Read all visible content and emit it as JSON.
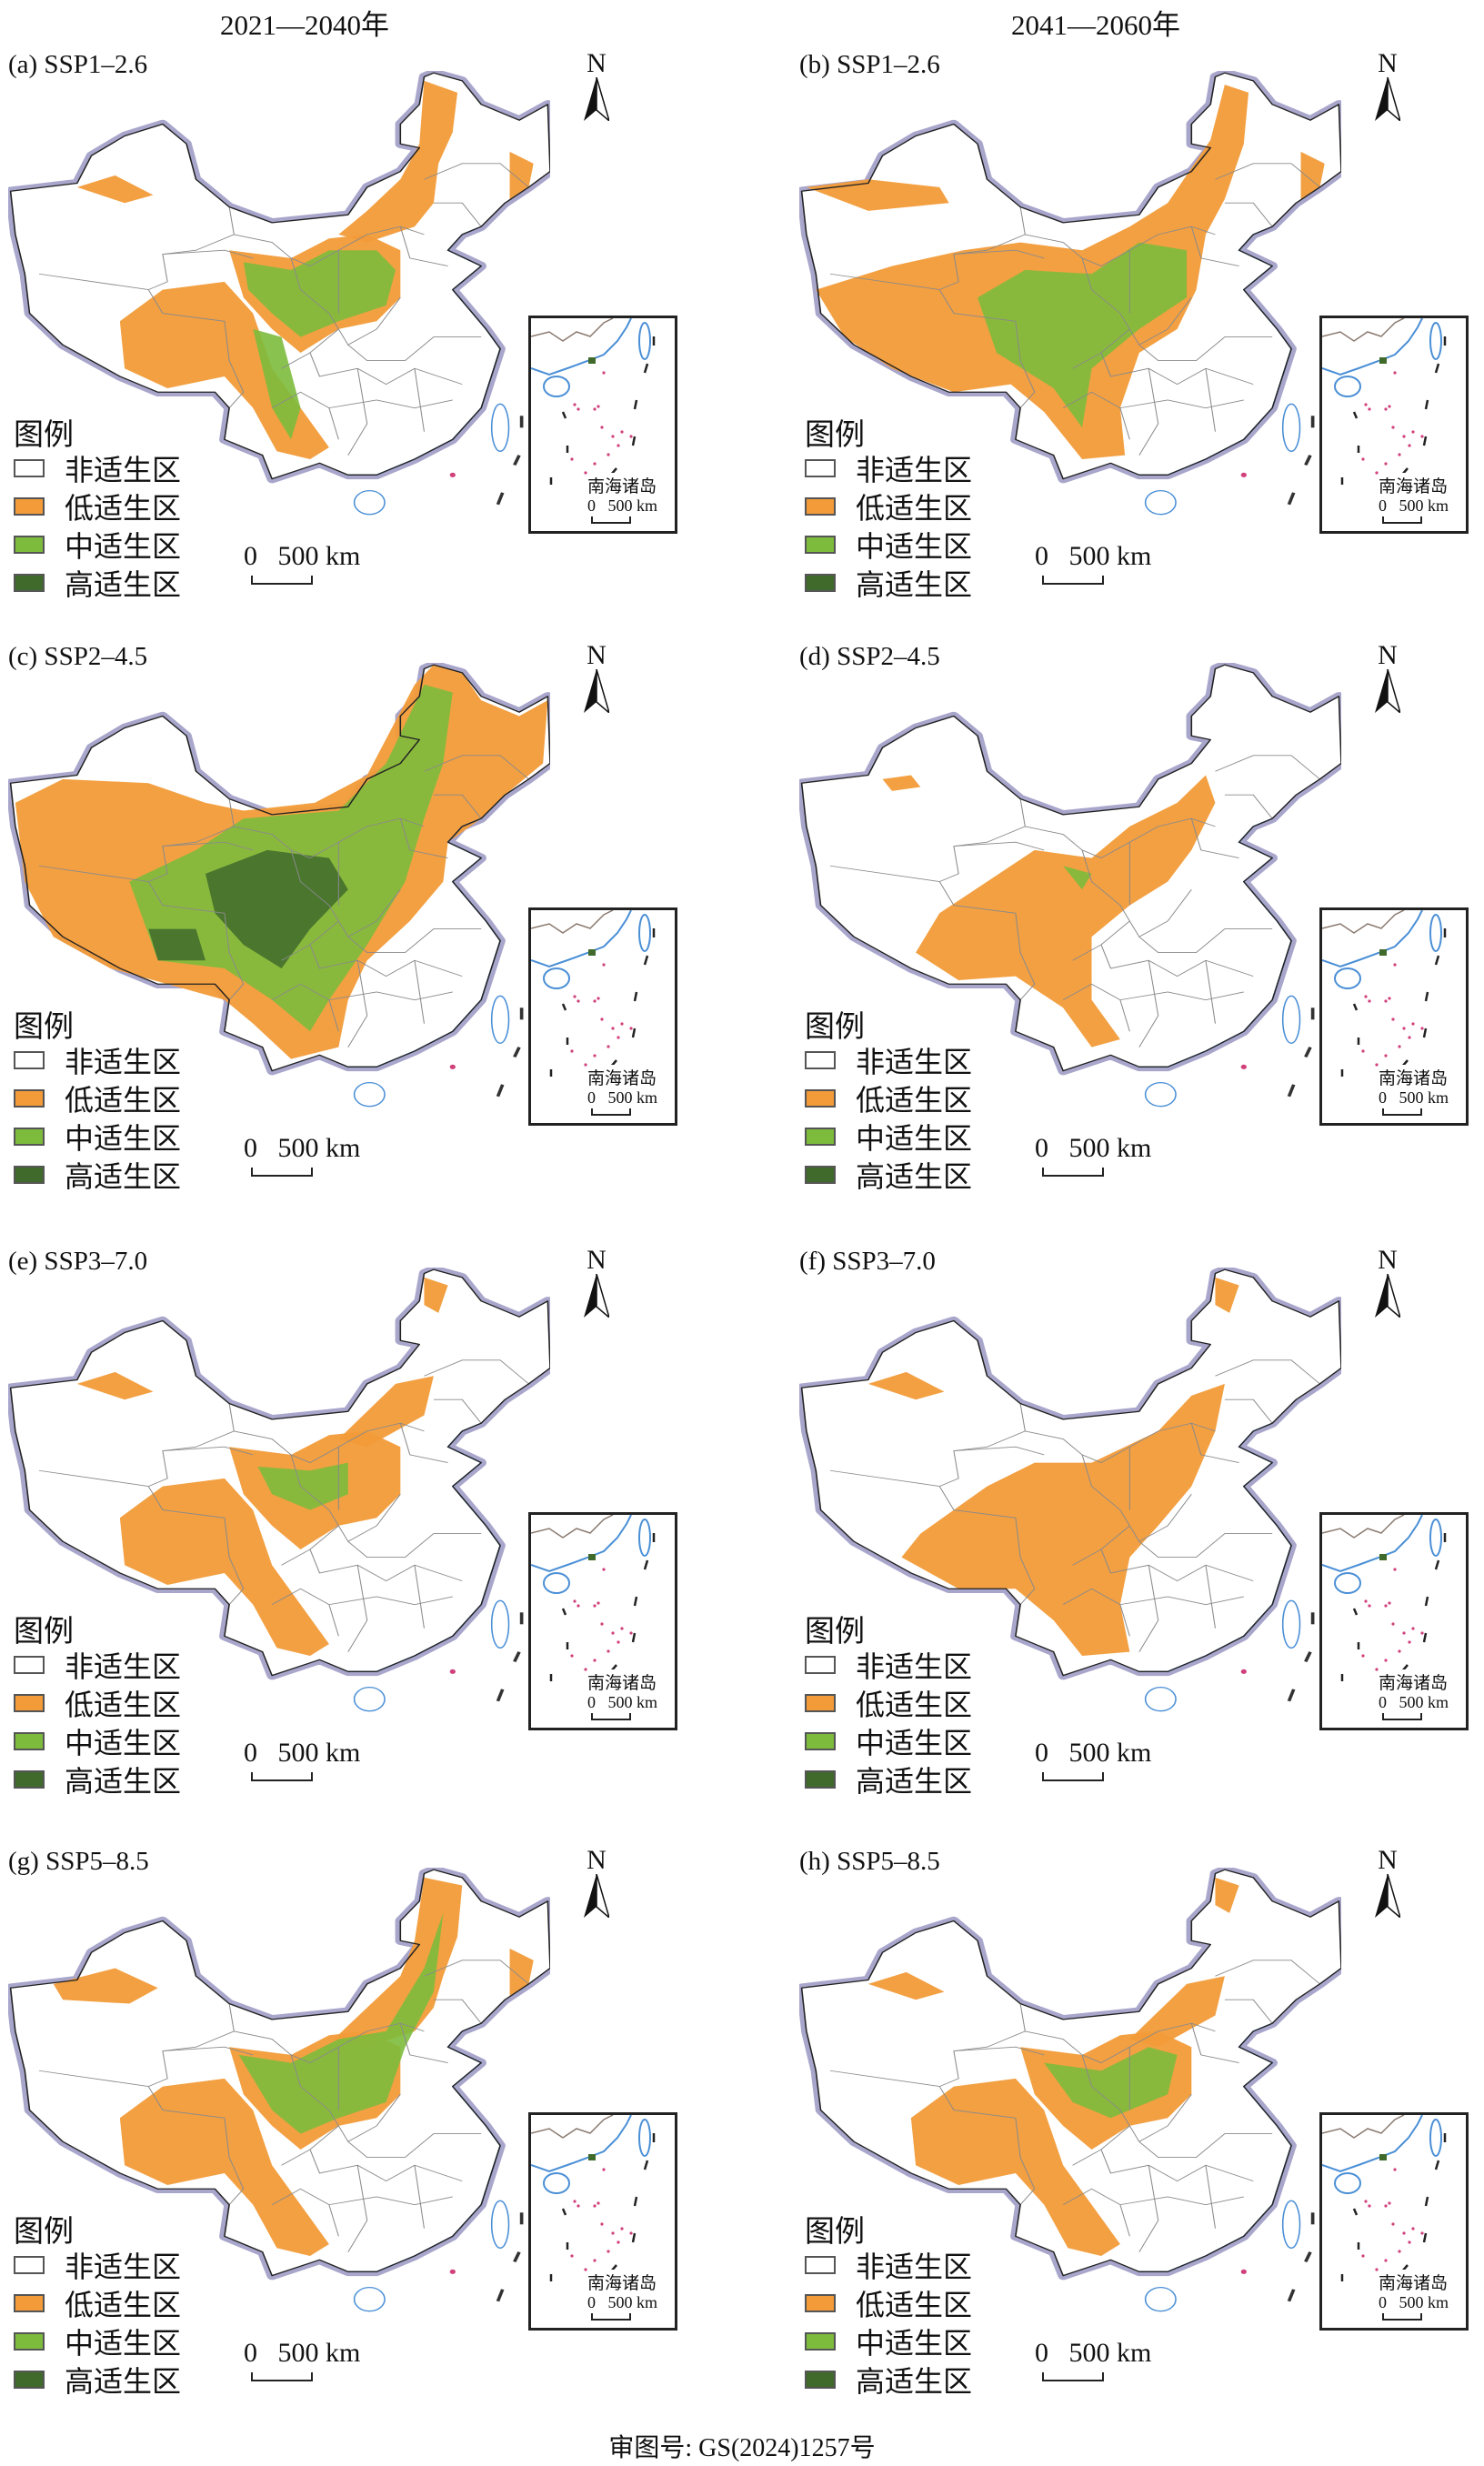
{
  "column_titles": [
    "2021—2040年",
    "2041—2060年"
  ],
  "panels": [
    {
      "label": "(a) SSP1–2.6",
      "key": "a"
    },
    {
      "label": "(b) SSP1–2.6",
      "key": "b"
    },
    {
      "label": "(c) SSP2–4.5",
      "key": "c"
    },
    {
      "label": "(d) SSP2–4.5",
      "key": "d"
    },
    {
      "label": "(e) SSP3–7.0",
      "key": "e"
    },
    {
      "label": "(f) SSP3–7.0",
      "key": "f"
    },
    {
      "label": "(g) SSP5–8.5",
      "key": "g"
    },
    {
      "label": "(h) SSP5–8.5",
      "key": "h"
    }
  ],
  "legend": {
    "title": "图例",
    "items": [
      {
        "label": "非适生区",
        "color": "#ffffff"
      },
      {
        "label": "低适生区",
        "color": "#f29b38"
      },
      {
        "label": "中适生区",
        "color": "#7dbb3c"
      },
      {
        "label": "高适生区",
        "color": "#3f6a2c"
      }
    ]
  },
  "north_label": "N",
  "scale_label": "0   500 km",
  "inset": {
    "label": "南海诸岛",
    "scale_label": "0   500 km"
  },
  "footer": "审图号: GS(2024)1257号",
  "colors": {
    "outline_halo": "#a9a6cc",
    "coast": "#4a8fd6",
    "province": "#8a8a8a"
  }
}
